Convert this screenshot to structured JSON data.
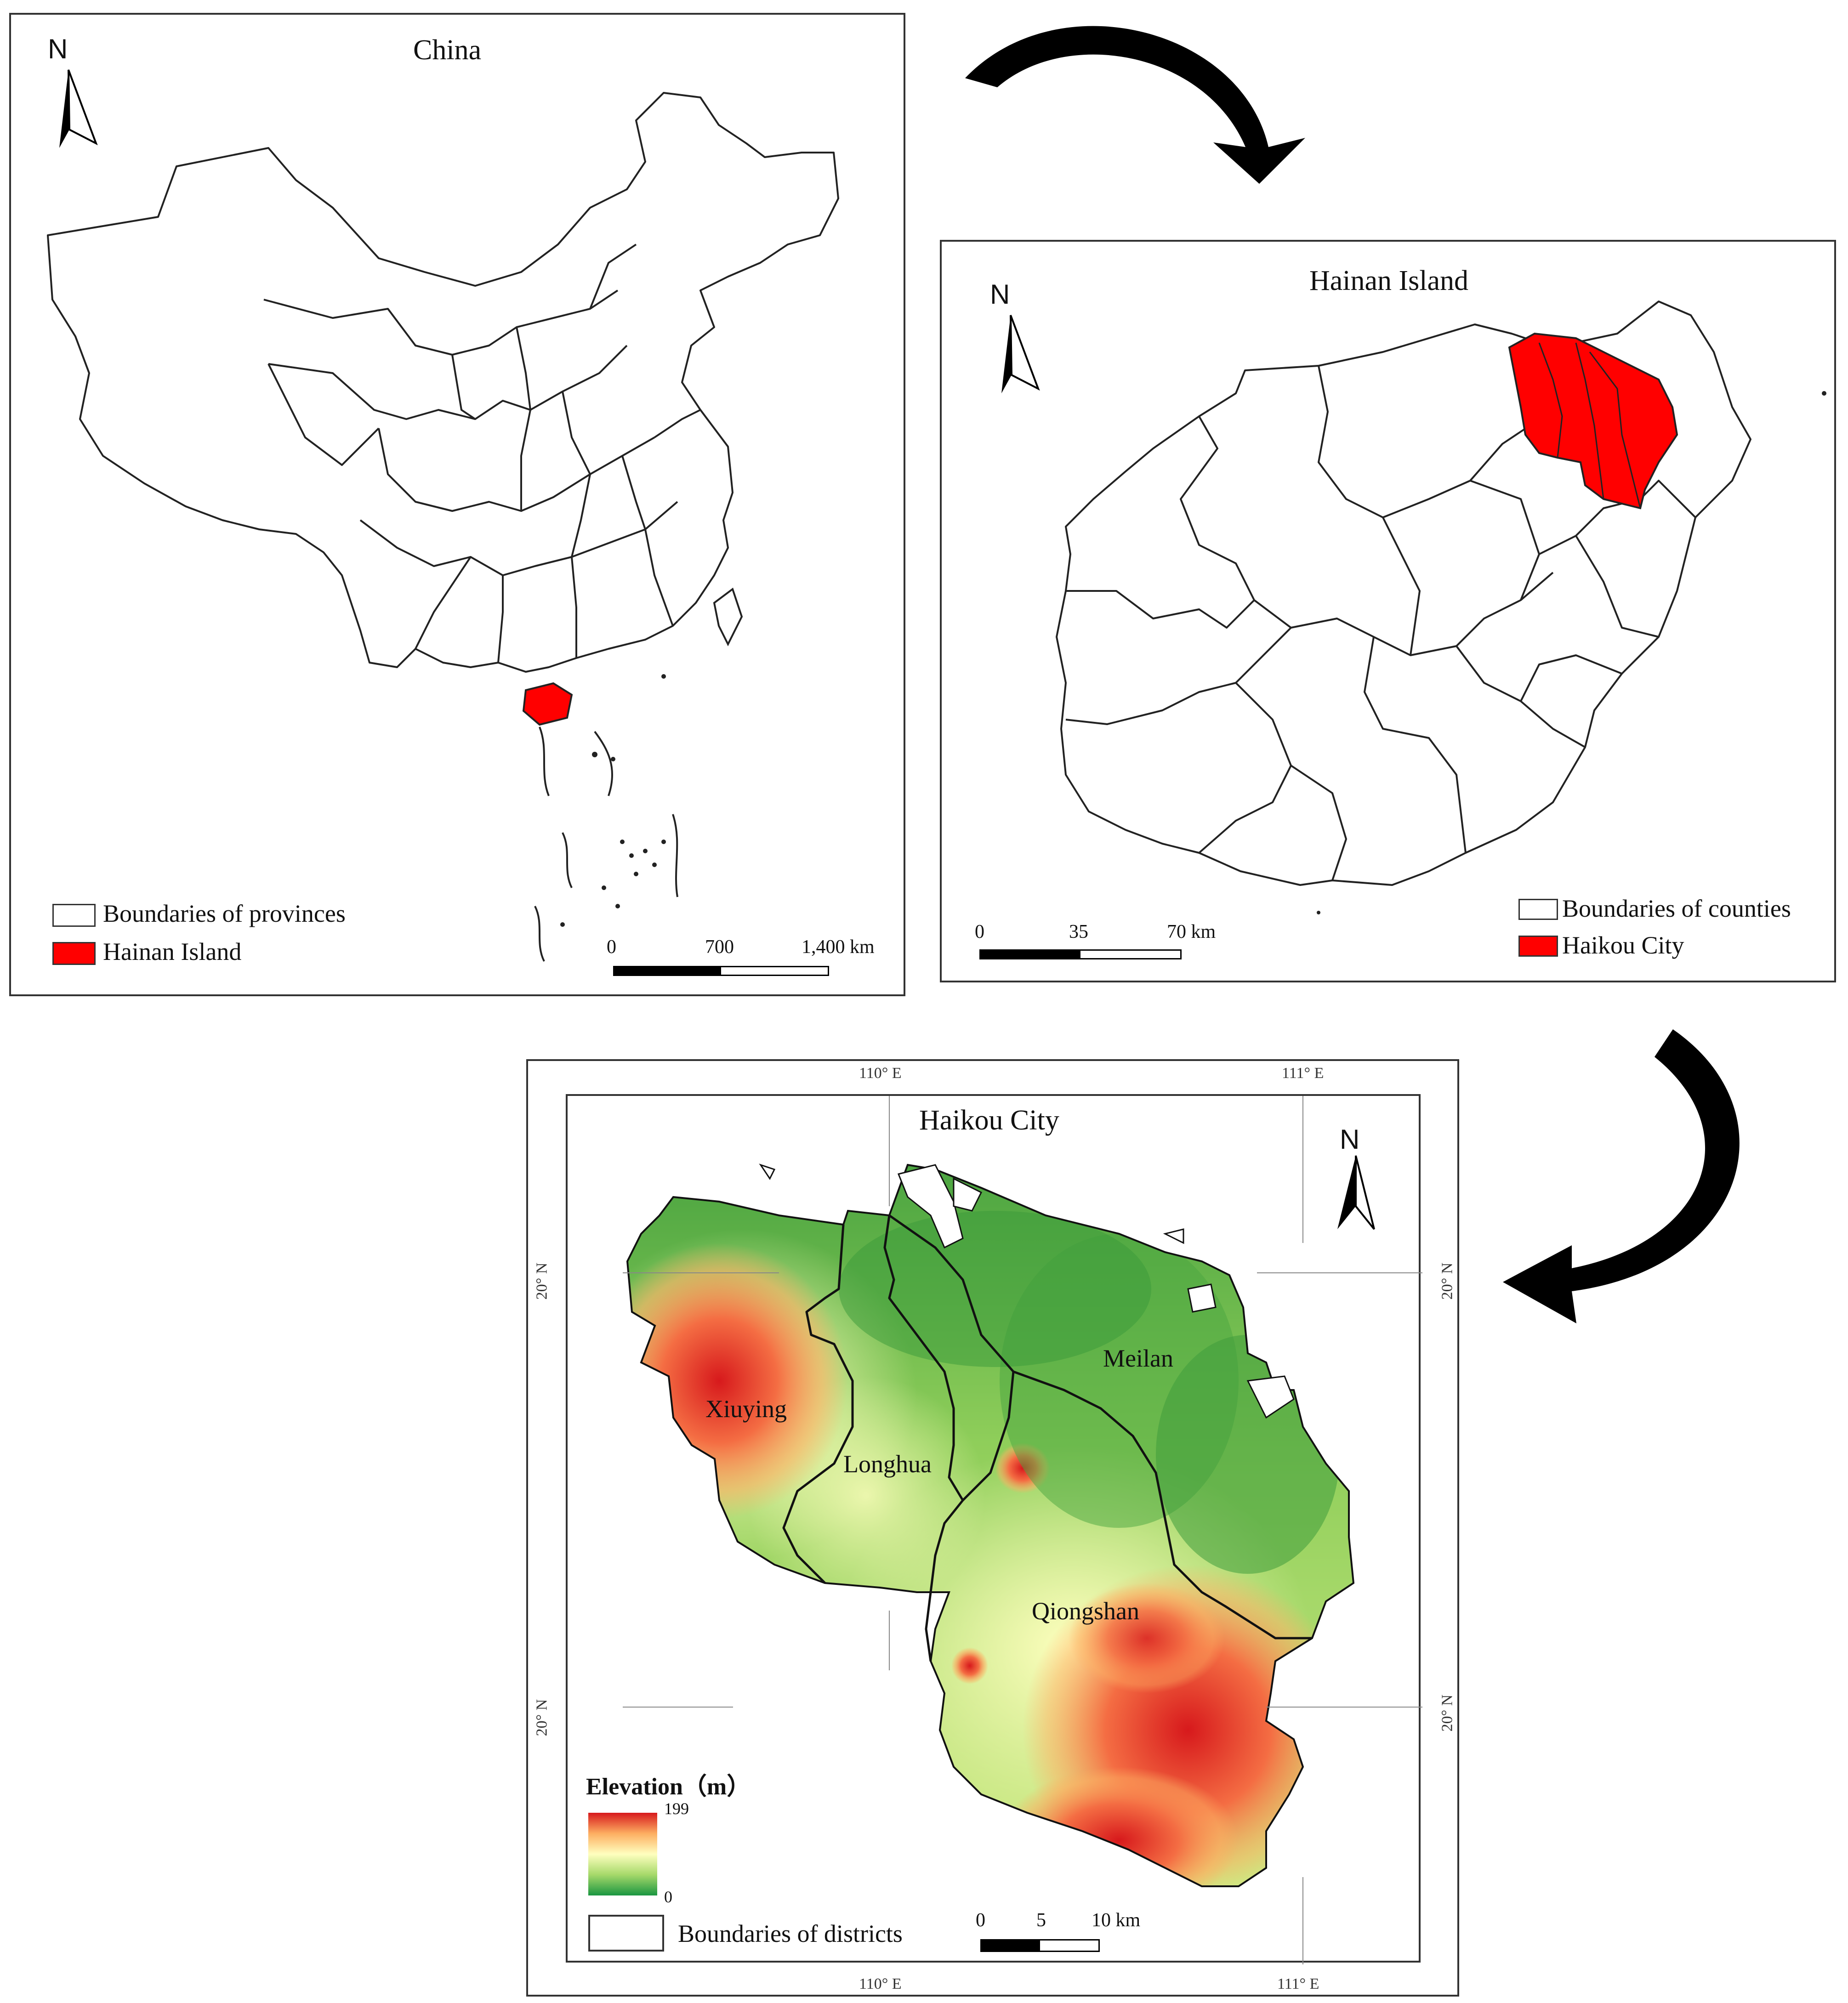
{
  "china_map": {
    "title": "China",
    "north": "N",
    "legend": [
      {
        "label": "Boundaries of provinces",
        "swatch": "#ffffff"
      },
      {
        "label": "Hainan Island",
        "swatch": "#ff0000"
      }
    ],
    "scale": {
      "ticks": [
        "0",
        "700",
        "1,400 km"
      ]
    }
  },
  "hainan_map": {
    "title": "Hainan Island",
    "north": "N",
    "legend": [
      {
        "label": "Boundaries of counties",
        "swatch": "#ffffff"
      },
      {
        "label": "Haikou City",
        "swatch": "#ff0000"
      }
    ],
    "scale": {
      "ticks": [
        "0",
        "35",
        "70 km"
      ]
    }
  },
  "haikou_map": {
    "title": "Haikou City",
    "north": "N",
    "districts": [
      "Xiuying",
      "Longhua",
      "Meilan",
      "Qiongshan"
    ],
    "coords": {
      "top_left": "110° E",
      "top_right": "111° E",
      "bottom_left": "110° E",
      "bottom_right": "111° E",
      "left_top": "20° N",
      "left_bottom": "20° N",
      "right_top": "20° N",
      "right_bottom": "20° N"
    },
    "elevation_legend": {
      "title": "Elevation（m）",
      "max": "199",
      "min": "0",
      "colors": [
        "#d7191c",
        "#fdae61",
        "#ffffbf",
        "#a6d96a",
        "#1a9641"
      ]
    },
    "district_legend": "Boundaries of districts",
    "scale": {
      "ticks": [
        "0",
        "5",
        "10 km"
      ]
    }
  },
  "colors": {
    "highlight": "#ff0000",
    "arrow": "#000000"
  }
}
